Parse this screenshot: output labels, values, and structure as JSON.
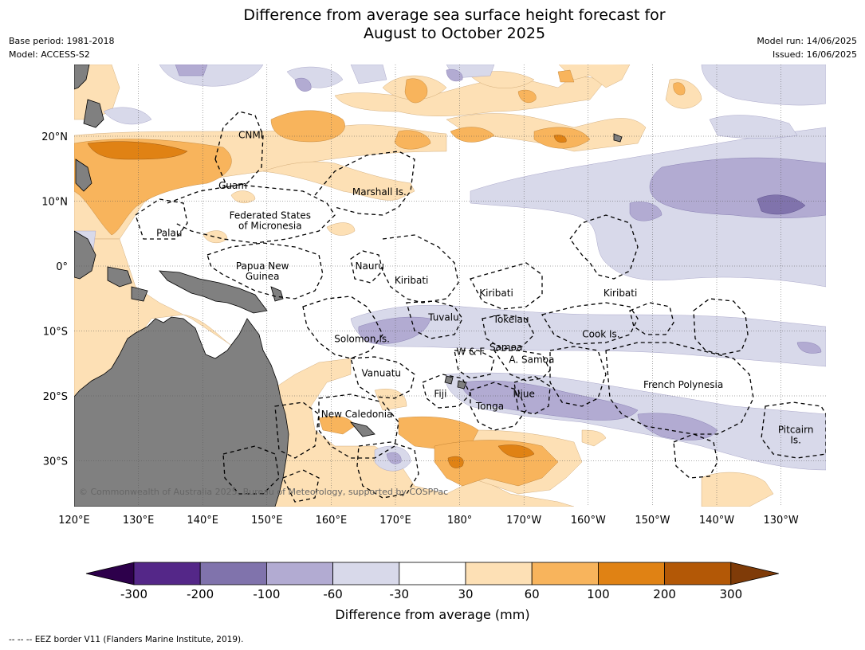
{
  "title": {
    "line1": "Difference from average sea surface height forecast for",
    "line2": "August to October 2025"
  },
  "meta": {
    "base_period": "Base period: 1981-2018",
    "model": "Model: ACCESS-S2",
    "model_run": "Model run: 14/06/2025",
    "issued": "Issued: 16/06/2025"
  },
  "colors": {
    "land": "#808080",
    "pos_30_60": "#fde0b5",
    "pos_60_100": "#f8b45c",
    "pos_100_200": "#e08214",
    "pos_200_300": "#b35806",
    "neg_30_60": "#d8d9ea",
    "neg_60_100": "#b2abd2",
    "neg_100_200": "#8073ac",
    "neg_200_300": "#542788",
    "neg_ext": "#2d004b",
    "pos_ext": "#7f3b08"
  },
  "axes": {
    "lon_ticks": [
      "120°E",
      "130°E",
      "140°E",
      "150°E",
      "160°E",
      "170°E",
      "180°",
      "170°W",
      "160°W",
      "150°W",
      "140°W",
      "130°W"
    ],
    "lat_ticks": [
      "20°N",
      "10°N",
      "0°",
      "10°S",
      "20°S",
      "30°S"
    ]
  },
  "places": [
    {
      "name": "CNMI",
      "lon": 147.5,
      "lat": 20.2
    },
    {
      "name": "Guam",
      "lon": 144.7,
      "lat": 12.4
    },
    {
      "name": "Marshall Is.",
      "lon": 167.5,
      "lat": 11.4
    },
    {
      "name": "Federated States",
      "lon": 150.5,
      "lat": 7.8
    },
    {
      "name": "of Micronesia",
      "lon": 150.5,
      "lat": 6.2
    },
    {
      "name": "Palau",
      "lon": 134.8,
      "lat": 5.1
    },
    {
      "name": "Papua New",
      "lon": 149.3,
      "lat": 0.0
    },
    {
      "name": "Guinea",
      "lon": 149.3,
      "lat": -1.6
    },
    {
      "name": "Nauru",
      "lon": 166.0,
      "lat": 0.0
    },
    {
      "name": "Kiribati",
      "lon": 172.5,
      "lat": -2.2
    },
    {
      "name": "Kiribati",
      "lon": -174.3,
      "lat": -4.2
    },
    {
      "name": "Kiribati",
      "lon": -155.0,
      "lat": -4.2
    },
    {
      "name": "Tuvalu",
      "lon": 177.5,
      "lat": -7.9
    },
    {
      "name": "Tokelau",
      "lon": -172.0,
      "lat": -8.2
    },
    {
      "name": "Solomon Is.",
      "lon": 164.8,
      "lat": -11.2
    },
    {
      "name": "Cook Is.",
      "lon": -158.0,
      "lat": -10.5
    },
    {
      "name": "Samoa",
      "lon": -172.8,
      "lat": -12.5
    },
    {
      "name": "W & F",
      "lon": -178.3,
      "lat": -13.2
    },
    {
      "name": "A. Samoa",
      "lon": -168.8,
      "lat": -14.4
    },
    {
      "name": "Vanuatu",
      "lon": 167.8,
      "lat": -16.5
    },
    {
      "name": "French Polynesia",
      "lon": -145.2,
      "lat": -18.3
    },
    {
      "name": "Fiji",
      "lon": 177.0,
      "lat": -19.7
    },
    {
      "name": "Niue",
      "lon": -170.0,
      "lat": -19.7
    },
    {
      "name": "Tonga",
      "lon": -175.3,
      "lat": -21.6
    },
    {
      "name": "New Caledonia",
      "lon": 164.0,
      "lat": -22.8
    },
    {
      "name": "Pitcairn",
      "lon": -127.7,
      "lat": -25.2
    },
    {
      "name": "Is.",
      "lon": -127.7,
      "lat": -26.8
    }
  ],
  "copyright": "© Commonwealth of Australia 2025, Bureau of Meteorology, supported by COSPPac",
  "colorbar": {
    "ticks": [
      "-300",
      "-200",
      "-100",
      "-60",
      "-30",
      "30",
      "60",
      "100",
      "200",
      "300"
    ],
    "label": "Difference from average (mm)"
  },
  "footer": "--  --  -- EEZ border V11 (Flanders Marine Institute, 2019)."
}
